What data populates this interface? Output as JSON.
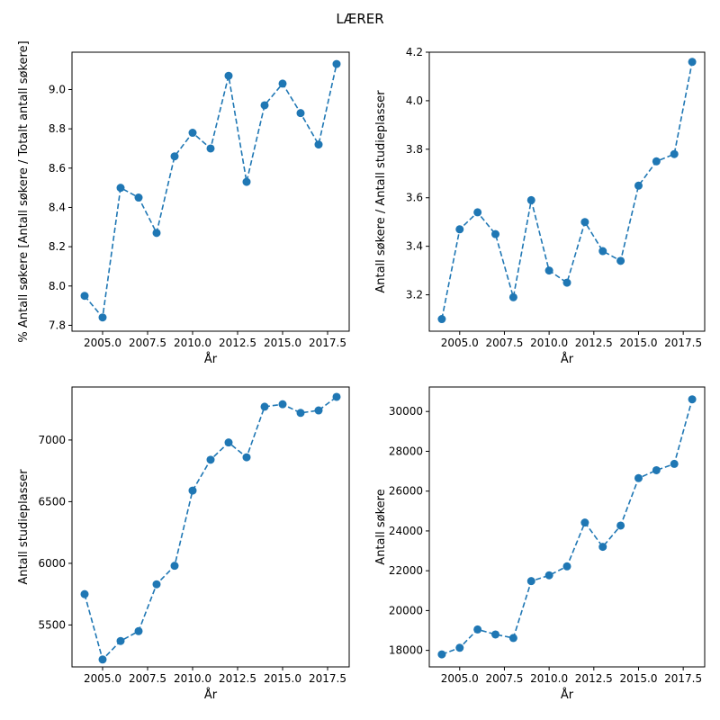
{
  "figure": {
    "suptitle": "LÆRER"
  },
  "colors": {
    "series": "#1f77b4",
    "axes": "#000000",
    "background": "#ffffff"
  },
  "chart_data": [
    {
      "type": "line",
      "title": "",
      "xlabel": "År",
      "ylabel": "% Antall søkere [Antall søkere / Totalt antall søkere]",
      "xlim": [
        2003.3,
        2018.7
      ],
      "ylim": [
        7.77,
        9.19
      ],
      "xticks": [
        2005.0,
        2007.5,
        2010.0,
        2012.5,
        2015.0,
        2017.5
      ],
      "xtick_labels": [
        "2005.0",
        "2007.5",
        "2010.0",
        "2012.5",
        "2015.0",
        "2017.5"
      ],
      "yticks": [
        7.8,
        8.0,
        8.2,
        8.4,
        8.6,
        8.8,
        9.0
      ],
      "ytick_labels": [
        "7.8",
        "8.0",
        "8.2",
        "8.4",
        "8.6",
        "8.8",
        "9.0"
      ],
      "line_style": "dashed",
      "marker": "circle",
      "x": [
        2004,
        2005,
        2006,
        2007,
        2008,
        2009,
        2010,
        2011,
        2012,
        2013,
        2014,
        2015,
        2016,
        2017,
        2018
      ],
      "y": [
        7.95,
        7.84,
        8.5,
        8.45,
        8.27,
        8.66,
        8.78,
        8.7,
        9.07,
        8.53,
        8.92,
        9.03,
        8.88,
        8.72,
        9.13
      ]
    },
    {
      "type": "line",
      "title": "",
      "xlabel": "År",
      "ylabel": "Antall søkere / Antall studieplasser",
      "xlim": [
        2003.3,
        2018.7
      ],
      "ylim": [
        3.05,
        4.2
      ],
      "xticks": [
        2005.0,
        2007.5,
        2010.0,
        2012.5,
        2015.0,
        2017.5
      ],
      "xtick_labels": [
        "2005.0",
        "2007.5",
        "2010.0",
        "2012.5",
        "2015.0",
        "2017.5"
      ],
      "yticks": [
        3.2,
        3.4,
        3.6,
        3.8,
        4.0,
        4.2
      ],
      "ytick_labels": [
        "3.2",
        "3.4",
        "3.6",
        "3.8",
        "4.0",
        "4.2"
      ],
      "line_style": "dashed",
      "marker": "circle",
      "x": [
        2004,
        2005,
        2006,
        2007,
        2008,
        2009,
        2010,
        2011,
        2012,
        2013,
        2014,
        2015,
        2016,
        2017,
        2018
      ],
      "y": [
        3.1,
        3.47,
        3.54,
        3.45,
        3.19,
        3.59,
        3.3,
        3.25,
        3.5,
        3.38,
        3.34,
        3.65,
        3.75,
        3.78,
        4.16
      ]
    },
    {
      "type": "line",
      "title": "",
      "xlabel": "År",
      "ylabel": "Antall studieplasser",
      "xlim": [
        2003.3,
        2018.7
      ],
      "ylim": [
        5160,
        7430
      ],
      "xticks": [
        2005.0,
        2007.5,
        2010.0,
        2012.5,
        2015.0,
        2017.5
      ],
      "xtick_labels": [
        "2005.0",
        "2007.5",
        "2010.0",
        "2012.5",
        "2015.0",
        "2017.5"
      ],
      "yticks": [
        5500,
        6000,
        6500,
        7000
      ],
      "ytick_labels": [
        "5500",
        "6000",
        "6500",
        "7000"
      ],
      "line_style": "dashed",
      "marker": "circle",
      "x": [
        2004,
        2005,
        2006,
        2007,
        2008,
        2009,
        2010,
        2011,
        2012,
        2013,
        2014,
        2015,
        2016,
        2017,
        2018
      ],
      "y": [
        5750,
        5220,
        5370,
        5450,
        5830,
        5980,
        6590,
        6840,
        6980,
        6860,
        7270,
        7290,
        7220,
        7240,
        7350
      ]
    },
    {
      "type": "line",
      "title": "",
      "xlabel": "År",
      "ylabel": "Antall søkere",
      "xlim": [
        2003.3,
        2018.7
      ],
      "ylim": [
        17170,
        31230
      ],
      "xticks": [
        2005.0,
        2007.5,
        2010.0,
        2012.5,
        2015.0,
        2017.5
      ],
      "xtick_labels": [
        "2005.0",
        "2007.5",
        "2010.0",
        "2012.5",
        "2015.0",
        "2017.5"
      ],
      "yticks": [
        18000,
        20000,
        22000,
        24000,
        26000,
        28000,
        30000
      ],
      "ytick_labels": [
        "18000",
        "20000",
        "22000",
        "24000",
        "26000",
        "28000",
        "30000"
      ],
      "line_style": "dashed",
      "marker": "circle",
      "x": [
        2004,
        2005,
        2006,
        2007,
        2008,
        2009,
        2010,
        2011,
        2012,
        2013,
        2014,
        2015,
        2016,
        2017,
        2018
      ],
      "y": [
        17800,
        18130,
        19050,
        18800,
        18620,
        21480,
        21770,
        22220,
        24420,
        23200,
        24270,
        26650,
        27050,
        27370,
        30610
      ]
    }
  ]
}
